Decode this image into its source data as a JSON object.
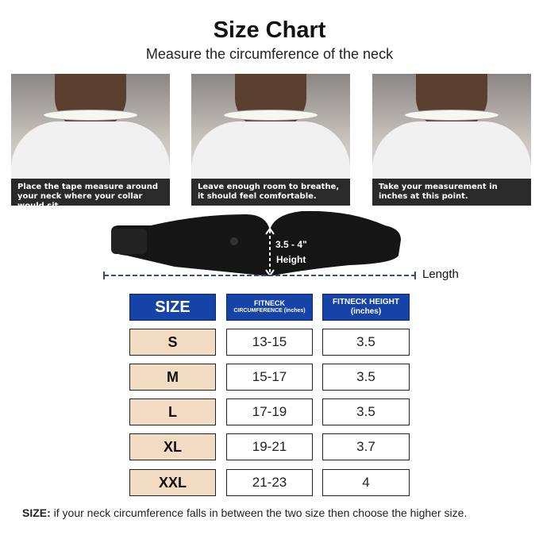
{
  "title": "Size Chart",
  "subtitle": "Measure the circumference of the neck",
  "steps": [
    {
      "caption": "Place the tape measure around your neck where your collar would sit."
    },
    {
      "caption": "Leave enough room to breathe, it should feel comfortable."
    },
    {
      "caption": "Take your measurement in inches at this point."
    }
  ],
  "product": {
    "height_label": "3.5 - 4\"",
    "height_word": "Height",
    "length_label": "Length"
  },
  "table": {
    "headers": [
      "SIZE",
      "FITNECK",
      "CIRCUMFERENCE (inches)",
      "FITNECK HEIGHT",
      "(inches)"
    ],
    "rows": [
      {
        "size": "S",
        "circumference": "13-15",
        "height": "3.5"
      },
      {
        "size": "M",
        "circumference": "15-17",
        "height": "3.5"
      },
      {
        "size": "L",
        "circumference": "17-19",
        "height": "3.5"
      },
      {
        "size": "XL",
        "circumference": "19-21",
        "height": "3.7"
      },
      {
        "size": "XXL",
        "circumference": "21-23",
        "height": "4"
      }
    ]
  },
  "footer": {
    "label": "SIZE:",
    "text": " if your neck circumference falls in between the two size then choose the higher size."
  },
  "colors": {
    "header_blue": "#1643a8",
    "size_cell": "#f2dcc4"
  }
}
